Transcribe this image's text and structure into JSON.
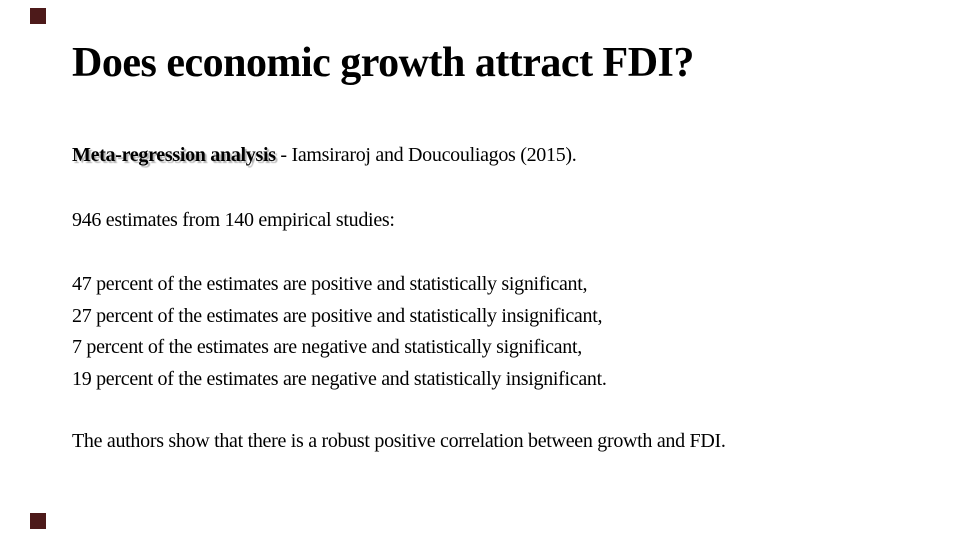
{
  "slide": {
    "accent_color": "#4d1a1a",
    "title": "Does economic growth attract FDI?",
    "reference": {
      "bold": "Meta-regression analysis",
      "rest": " - Iamsiraroj and Doucouliagos (2015)."
    },
    "sample": "946 estimates from 140 empirical studies:",
    "findings": [
      "47 percent of the estimates are positive and statistically significant,",
      "27 percent of the estimates are positive and statistically insignificant,",
      "7 percent of the estimates are negative and statistically significant,",
      "19 percent of the estimates are negative and statistically insignificant."
    ],
    "conclusion": "The authors show that there is a robust positive correlation between growth and FDI."
  }
}
